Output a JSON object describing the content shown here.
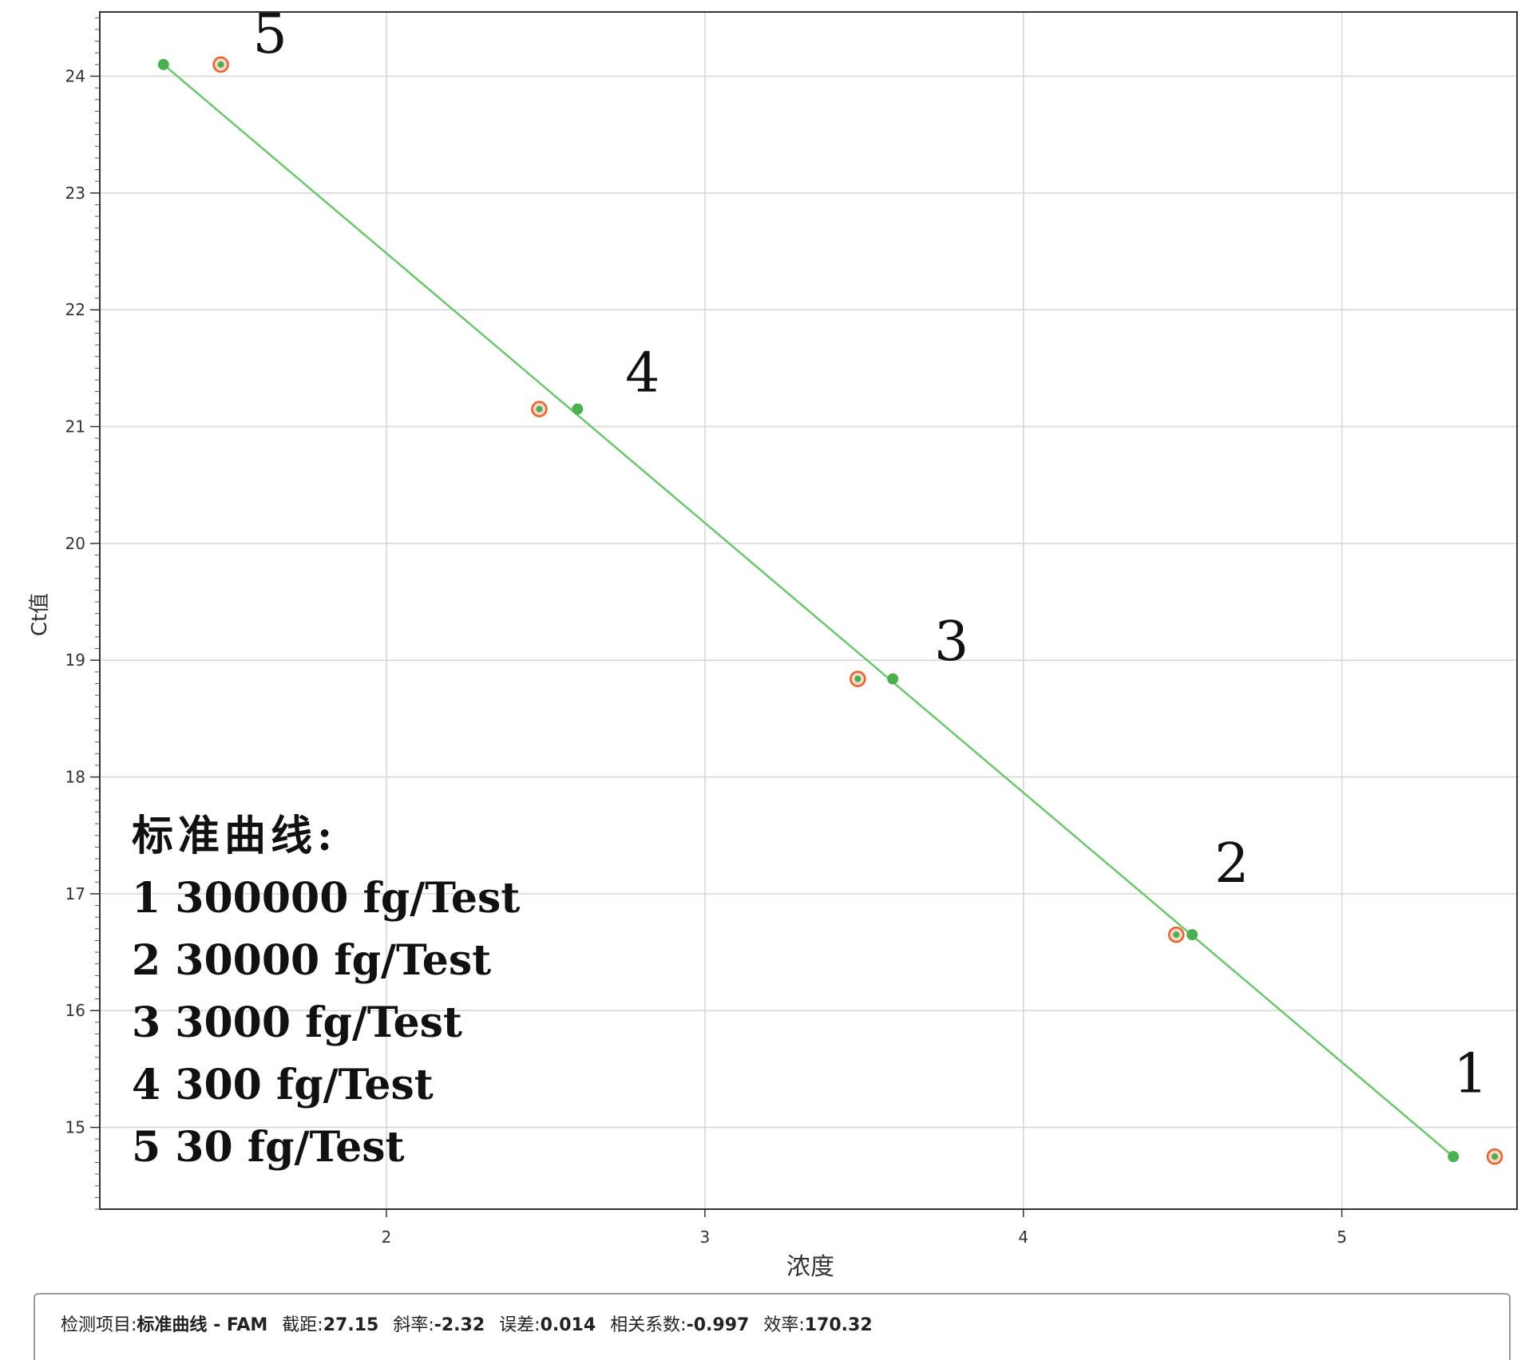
{
  "chart_data": {
    "type": "scatter",
    "xlabel": "浓度",
    "ylabel": "Ct值",
    "xlim": [
      1.1,
      5.55
    ],
    "ylim": [
      14.3,
      24.55
    ],
    "x_ticks": [
      "2",
      "3",
      "4",
      "5"
    ],
    "y_ticks": [
      "15",
      "16",
      "17",
      "18",
      "19",
      "20",
      "21",
      "22",
      "23",
      "24"
    ],
    "grid": true,
    "series": [
      {
        "color": "#4caf50",
        "marker": "filled-dot",
        "points": [
          {
            "x": 5.35,
            "y": 14.75
          },
          {
            "x": 4.53,
            "y": 16.65
          },
          {
            "x": 3.59,
            "y": 18.84
          },
          {
            "x": 2.6,
            "y": 21.15
          },
          {
            "x": 1.3,
            "y": 24.1
          }
        ]
      },
      {
        "color": "#e8602c",
        "marker": "ring",
        "points": [
          {
            "x": 5.48,
            "y": 14.75
          },
          {
            "x": 4.48,
            "y": 16.65
          },
          {
            "x": 3.48,
            "y": 18.84
          },
          {
            "x": 2.48,
            "y": 21.15
          },
          {
            "x": 1.48,
            "y": 24.1
          }
        ]
      }
    ],
    "fit_line": {
      "color": "#6cc46c",
      "from": {
        "x": 1.3,
        "y": 24.1
      },
      "to": {
        "x": 5.35,
        "y": 14.75
      }
    },
    "point_labels": [
      {
        "text": "1",
        "x": 5.35,
        "y": 15.3
      },
      {
        "text": "2",
        "x": 4.6,
        "y": 17.1
      },
      {
        "text": "3",
        "x": 3.72,
        "y": 19.0
      },
      {
        "text": "4",
        "x": 2.75,
        "y": 21.3
      },
      {
        "text": "5",
        "x": 1.58,
        "y": 24.2
      }
    ],
    "legend_title": "标准曲线:",
    "legend_items": [
      "1 300000 fg/Test",
      "2 30000 fg/Test",
      "3 3000 fg/Test",
      "4 300 fg/Test",
      "5 30 fg/Test"
    ],
    "legend_placement": "bottom-left"
  },
  "info": {
    "item_label": "检测项目:",
    "item_value": "标准曲线 - FAM",
    "intercept_label": "截距:",
    "intercept_value": "27.15",
    "slope_label": "斜率:",
    "slope_value": "-2.32",
    "error_label": "误差:",
    "error_value": "0.014",
    "corr_label": "相关系数:",
    "corr_value": "-0.997",
    "eff_label": "效率:",
    "eff_value": "170.32"
  }
}
